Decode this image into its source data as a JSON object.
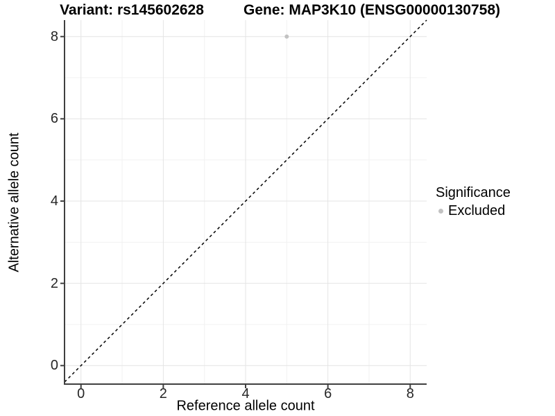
{
  "titles": {
    "left": "Variant: rs145602628",
    "right": "Gene: MAP3K10 (ENSG00000130758)"
  },
  "axes": {
    "x_label": "Reference allele count",
    "y_label": "Alternative allele count"
  },
  "legend": {
    "title": "Significance",
    "entries": [
      {
        "label": "Excluded",
        "color": "#c2c2c2",
        "marker": "circle"
      }
    ]
  },
  "chart_data": {
    "type": "scatter",
    "title": "Variant: rs145602628 — Gene: MAP3K10 (ENSG00000130758)",
    "xlabel": "Reference allele count",
    "ylabel": "Alternative allele count",
    "xlim": [
      -0.4,
      8.4
    ],
    "ylim": [
      -0.45,
      8.4
    ],
    "xticks": [
      0,
      2,
      4,
      6,
      8
    ],
    "yticks": [
      0,
      2,
      4,
      6,
      8
    ],
    "grid": "on",
    "minor_grid": "on",
    "legend_position": "right",
    "reference_line": {
      "equation": "y = x",
      "style": "dashed",
      "color": "#000000"
    },
    "series": [
      {
        "name": "Excluded",
        "color": "#c2c2c2",
        "points": [
          {
            "x": 5,
            "y": 8
          }
        ]
      }
    ]
  },
  "colors": {
    "background": "#ffffff",
    "grid_major": "#e4e4e4",
    "grid_minor": "#f1f1f1",
    "axis_line": "#3f3f3f",
    "tick_text": "#262626",
    "point": "#c2c2c2",
    "reference_line": "#000000"
  }
}
